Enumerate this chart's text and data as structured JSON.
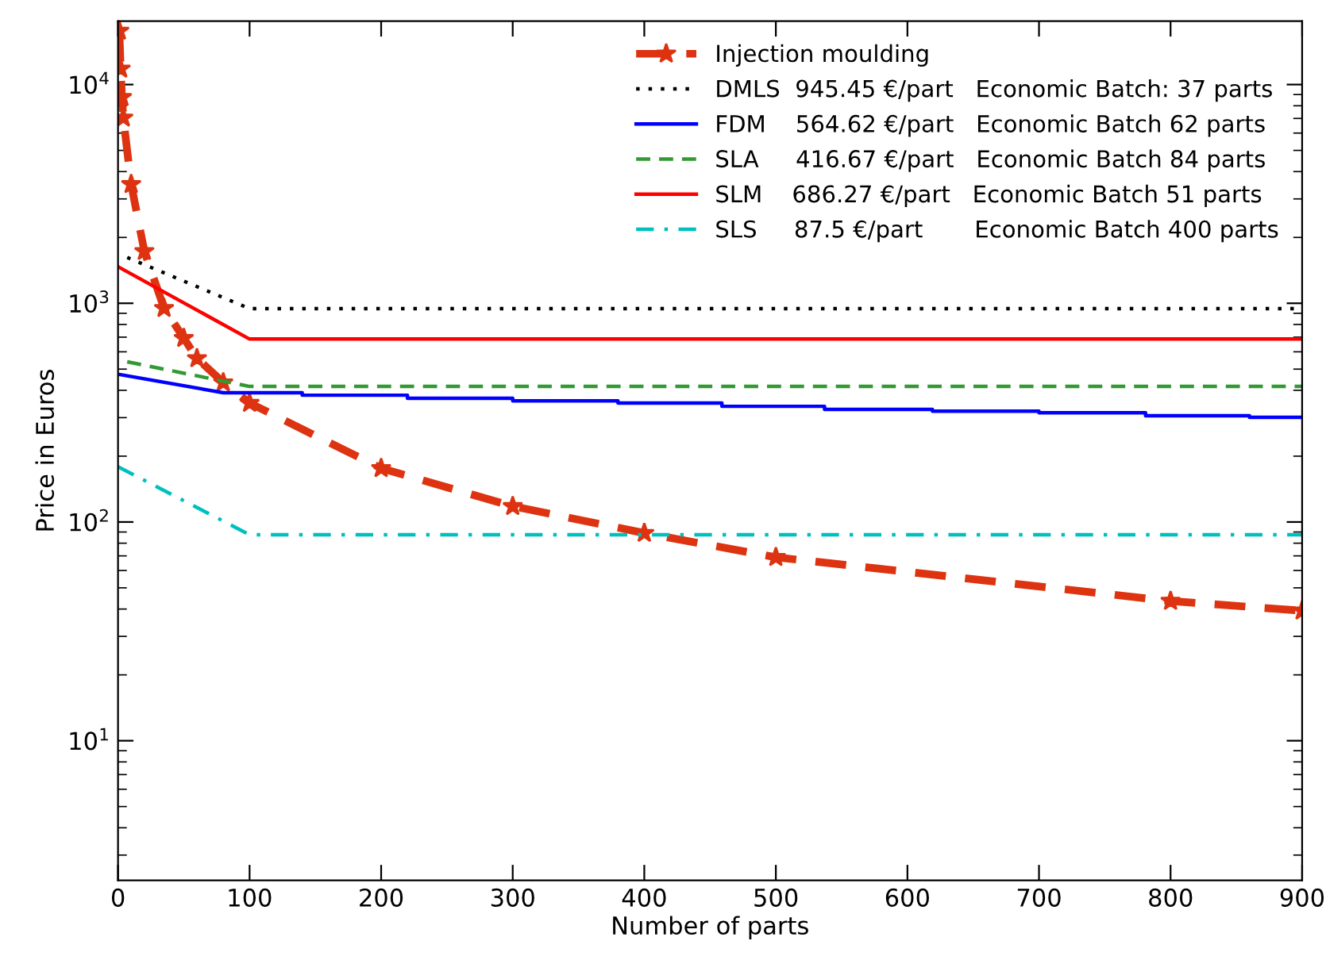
{
  "chart_data": {
    "type": "line",
    "xlabel": "Number of parts",
    "ylabel": "Price in Euros",
    "log": "y",
    "xlim": [
      0,
      900
    ],
    "xticks": [
      0,
      100,
      200,
      300,
      400,
      500,
      600,
      700,
      800,
      900
    ],
    "ylim": [
      2.3,
      19500
    ],
    "yticks": [
      {
        "value": 10,
        "label": "10$^{1}$"
      },
      {
        "value": 100,
        "label": "10$^{2}$"
      },
      {
        "value": 1000,
        "label": "10$^{3}$"
      },
      {
        "value": 10000,
        "label": "10$^{4}$"
      }
    ],
    "grid": false,
    "legend": "top right",
    "series": [
      {
        "name": "Injection moulding",
        "color": "#dd3311",
        "line_style": "dashed",
        "marker": "star",
        "x": [
          1,
          2,
          3,
          4,
          10,
          20,
          35,
          50,
          60,
          80,
          100,
          200,
          300,
          400,
          500,
          800,
          900
        ],
        "values": [
          17600,
          11800,
          8750,
          7050,
          3500,
          1730,
          950,
          693,
          560,
          434,
          350,
          176,
          118,
          89,
          69,
          43.5,
          39.3
        ]
      },
      {
        "name": "DMLS  945.45 €/part   Economic Batch: 37 parts",
        "color": "#000000",
        "line_style": "dotted",
        "marker": "none",
        "x": [
          7,
          100,
          900
        ],
        "values": [
          1620,
          945.45,
          945.45
        ]
      },
      {
        "name": "FDM    564.62 €/part   Economic Batch 62 parts",
        "color": "#0000ff",
        "line_style": "solid",
        "marker": "none",
        "x": [
          0,
          80,
          140,
          140,
          220,
          220,
          300,
          300,
          380,
          380,
          459,
          459,
          537,
          537,
          619,
          619,
          700,
          700,
          781,
          781,
          860,
          860,
          900
        ],
        "values": [
          474,
          390,
          390,
          380,
          380,
          368,
          368,
          358,
          358,
          350,
          350,
          338,
          338,
          327,
          327,
          321,
          321,
          316,
          316,
          306,
          306,
          301,
          301
        ]
      },
      {
        "name": "SLA     416.67 €/part   Economic Batch 84 parts",
        "color": "#339933",
        "line_style": "dashed",
        "marker": "none",
        "x": [
          7,
          100,
          900
        ],
        "values": [
          540,
          416.67,
          416.67
        ]
      },
      {
        "name": "SLM    686.27 €/part   Economic Batch 51 parts",
        "color": "#ff0000",
        "line_style": "solid",
        "marker": "none",
        "x": [
          0,
          100,
          900
        ],
        "values": [
          1470,
          686.27,
          686.27
        ]
      },
      {
        "name": "SLS     87.5 €/part       Economic Batch 400 parts",
        "color": "#00bfbf",
        "line_style": "dashdot",
        "marker": "none",
        "x": [
          0,
          100,
          900
        ],
        "values": [
          179,
          87.5,
          87.5
        ]
      }
    ]
  }
}
